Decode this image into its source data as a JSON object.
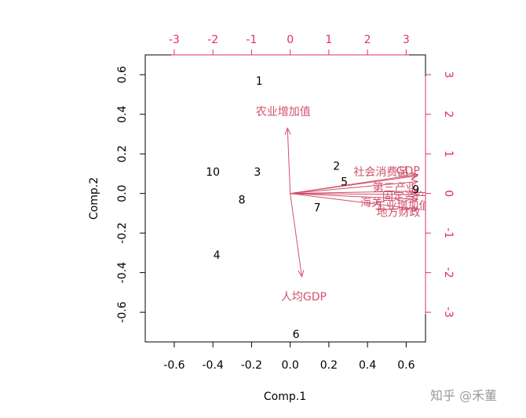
{
  "chart_data": {
    "type": "scatter",
    "subtype": "biplot",
    "xlabel": "Comp.1",
    "ylabel": "Comp.2",
    "xlim": [
      -0.75,
      0.7
    ],
    "ylim": [
      -0.75,
      0.7
    ],
    "x_ticks": [
      "-0.6",
      "-0.4",
      "-0.2",
      "0.0",
      "0.2",
      "0.4",
      "0.6"
    ],
    "y_ticks": [
      "-0.6",
      "-0.4",
      "-0.2",
      "0.0",
      "0.2",
      "0.4",
      "0.6"
    ],
    "top_ticks": [
      "-3",
      "-2",
      "-1",
      "0",
      "1",
      "2",
      "3"
    ],
    "right_ticks": [
      "-3",
      "-2",
      "-1",
      "0",
      "1",
      "2",
      "3"
    ],
    "secondary_lim": [
      -3.75,
      3.5
    ],
    "observations": [
      {
        "label": "1",
        "x": -0.16,
        "y": 0.57
      },
      {
        "label": "2",
        "x": 0.24,
        "y": 0.14
      },
      {
        "label": "3",
        "x": -0.17,
        "y": 0.11
      },
      {
        "label": "4",
        "x": -0.38,
        "y": -0.31
      },
      {
        "label": "5",
        "x": 0.28,
        "y": 0.06
      },
      {
        "label": "6",
        "x": 0.03,
        "y": -0.71
      },
      {
        "label": "7",
        "x": 0.14,
        "y": -0.07
      },
      {
        "label": "8",
        "x": -0.25,
        "y": -0.03
      },
      {
        "label": "9",
        "x": 0.65,
        "y": 0.02
      },
      {
        "label": "10",
        "x": -0.4,
        "y": 0.11
      }
    ],
    "loadings": [
      {
        "label": "农业增加值",
        "x": -0.07,
        "y": 1.65,
        "label_x": -0.18,
        "label_y": 2.07
      },
      {
        "label": "人均GDP",
        "x": 0.3,
        "y": -2.1,
        "label_x": 0.35,
        "label_y": -2.6
      },
      {
        "label": "社会消费品",
        "x": 3.3,
        "y": 0.48,
        "label_x": 2.35,
        "label_y": 0.55
      },
      {
        "label": "GDP",
        "x": 3.3,
        "y": 0.45,
        "label_x": 3.05,
        "label_y": 0.58
      },
      {
        "label": "第三产业",
        "x": 3.3,
        "y": 0.3,
        "label_x": 2.7,
        "label_y": 0.15
      },
      {
        "label": "固定资产",
        "x": 3.3,
        "y": 0.06,
        "label_x": 2.95,
        "label_y": -0.08
      },
      {
        "label": "海关",
        "x": 3.3,
        "y": -0.03,
        "label_x": 2.1,
        "label_y": -0.22
      },
      {
        "label": "工业增加值",
        "x": 3.3,
        "y": -0.15,
        "label_x": 2.9,
        "label_y": -0.3
      },
      {
        "label": "地方财政",
        "x": 3.3,
        "y": -0.4,
        "label_x": 2.8,
        "label_y": -0.47
      }
    ],
    "colors": {
      "arrow": "#d1506b",
      "secondary_axis": "#e0306a",
      "points": "#000000"
    },
    "grid": false
  },
  "watermark": "知乎 @禾董"
}
